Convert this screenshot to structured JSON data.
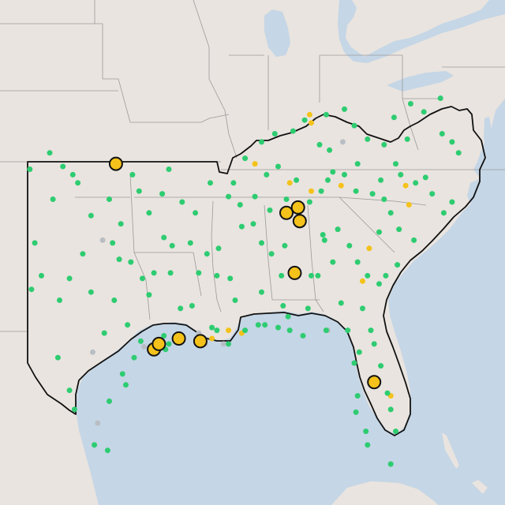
{
  "colors": {
    "land": "#e9e4df",
    "water": "#c5d6e6",
    "state_border": "#9a9a9a",
    "region_outline": "#111111",
    "station_green": "#2ecc71",
    "station_gray": "#b9bec4",
    "station_yellow": "#f4c21a",
    "large_marker_fill": "#f4c21a",
    "large_marker_stroke": "#111111"
  },
  "legend": null,
  "markers": {
    "large": [
      {
        "lon": -97.0,
        "lat": 36.5
      },
      {
        "lon": -94.7,
        "lat": 29.7
      },
      {
        "lon": -94.4,
        "lat": 29.9
      },
      {
        "lon": -93.2,
        "lat": 30.1
      },
      {
        "lon": -91.9,
        "lat": 30.0
      },
      {
        "lon": -86.7,
        "lat": 34.7
      },
      {
        "lon": -86.0,
        "lat": 34.9
      },
      {
        "lon": -85.9,
        "lat": 34.4
      },
      {
        "lon": -86.2,
        "lat": 32.5
      },
      {
        "lon": -81.4,
        "lat": 28.5
      }
    ],
    "small_green": [
      [
        -88.2,
        37.3
      ],
      [
        -87.4,
        37.6
      ],
      [
        -86.3,
        37.7
      ],
      [
        -85.6,
        38.1
      ],
      [
        -84.3,
        38.3
      ],
      [
        -83.2,
        38.5
      ],
      [
        -82.6,
        37.9
      ],
      [
        -84.7,
        37.2
      ],
      [
        -84.1,
        37.0
      ],
      [
        -81.8,
        37.4
      ],
      [
        -80.8,
        37.2
      ],
      [
        -80.2,
        38.2
      ],
      [
        -79.2,
        38.7
      ],
      [
        -78.4,
        38.4
      ],
      [
        -77.4,
        38.9
      ],
      [
        -77.3,
        37.6
      ],
      [
        -76.7,
        37.3
      ],
      [
        -76.3,
        36.9
      ],
      [
        -79.4,
        37.4
      ],
      [
        -80.1,
        36.5
      ],
      [
        -78.3,
        36.0
      ],
      [
        -77.9,
        35.4
      ],
      [
        -76.7,
        35.1
      ],
      [
        -77.2,
        34.7
      ],
      [
        -78.9,
        35.8
      ],
      [
        -79.8,
        36.1
      ],
      [
        -80.8,
        35.2
      ],
      [
        -81.5,
        35.4
      ],
      [
        -82.5,
        35.5
      ],
      [
        -81.0,
        35.9
      ],
      [
        -80.4,
        34.7
      ],
      [
        -81.1,
        34.0
      ],
      [
        -79.9,
        34.1
      ],
      [
        -79.0,
        33.7
      ],
      [
        -80.0,
        32.8
      ],
      [
        -80.7,
        32.4
      ],
      [
        -81.1,
        32.1
      ],
      [
        -81.8,
        32.4
      ],
      [
        -82.4,
        32.9
      ],
      [
        -82.9,
        33.5
      ],
      [
        -83.6,
        34.1
      ],
      [
        -84.4,
        33.7
      ],
      [
        -84.5,
        33.9
      ],
      [
        -83.9,
        32.9
      ],
      [
        -84.8,
        32.4
      ],
      [
        -83.4,
        31.4
      ],
      [
        -82.1,
        31.2
      ],
      [
        -81.6,
        30.4
      ],
      [
        -81.4,
        29.9
      ],
      [
        -81.0,
        29.1
      ],
      [
        -80.6,
        28.1
      ],
      [
        -80.4,
        27.5
      ],
      [
        -80.1,
        26.7
      ],
      [
        -80.4,
        25.5
      ],
      [
        -81.8,
        26.2
      ],
      [
        -81.9,
        26.7
      ],
      [
        -82.5,
        27.4
      ],
      [
        -82.4,
        28.0
      ],
      [
        -82.6,
        29.2
      ],
      [
        -82.3,
        29.6
      ],
      [
        -83.0,
        30.4
      ],
      [
        -84.3,
        30.4
      ],
      [
        -85.7,
        30.2
      ],
      [
        -86.5,
        30.4
      ],
      [
        -87.2,
        30.5
      ],
      [
        -88.0,
        30.6
      ],
      [
        -88.4,
        30.6
      ],
      [
        -89.2,
        30.4
      ],
      [
        -89.8,
        31.5
      ],
      [
        -90.1,
        32.3
      ],
      [
        -90.9,
        32.4
      ],
      [
        -91.5,
        33.2
      ],
      [
        -90.8,
        33.4
      ],
      [
        -89.4,
        34.2
      ],
      [
        -88.7,
        34.3
      ],
      [
        -88.2,
        33.6
      ],
      [
        -87.6,
        33.2
      ],
      [
        -87.0,
        32.4
      ],
      [
        -88.2,
        31.8
      ],
      [
        -86.9,
        31.3
      ],
      [
        -86.6,
        30.9
      ],
      [
        -85.4,
        31.2
      ],
      [
        -85.2,
        32.4
      ],
      [
        -86.8,
        33.5
      ],
      [
        -87.7,
        34.8
      ],
      [
        -86.7,
        35.2
      ],
      [
        -86.1,
        35.9
      ],
      [
        -85.3,
        35.1
      ],
      [
        -84.6,
        35.5
      ],
      [
        -84.2,
        35.9
      ],
      [
        -83.9,
        36.2
      ],
      [
        -83.2,
        36.1
      ],
      [
        -82.4,
        36.5
      ],
      [
        -87.2,
        36.4
      ],
      [
        -87.9,
        36.1
      ],
      [
        -88.6,
        35.3
      ],
      [
        -89.5,
        35.0
      ],
      [
        -89.9,
        35.8
      ],
      [
        -89.2,
        36.7
      ],
      [
        -90.2,
        35.3
      ],
      [
        -91.3,
        35.8
      ],
      [
        -92.2,
        34.7
      ],
      [
        -93.0,
        35.1
      ],
      [
        -93.8,
        36.3
      ],
      [
        -94.2,
        35.4
      ],
      [
        -94.1,
        33.8
      ],
      [
        -93.6,
        33.5
      ],
      [
        -92.5,
        33.6
      ],
      [
        -92.0,
        32.5
      ],
      [
        -93.7,
        32.5
      ],
      [
        -93.1,
        31.2
      ],
      [
        -92.4,
        31.3
      ],
      [
        -90.9,
        30.4
      ],
      [
        -90.2,
        29.9
      ],
      [
        -91.2,
        30.5
      ],
      [
        -102.2,
        36.3
      ],
      [
        -101.0,
        36.9
      ],
      [
        -100.2,
        36.4
      ],
      [
        -99.6,
        36.1
      ],
      [
        -99.3,
        35.8
      ],
      [
        -98.5,
        34.6
      ],
      [
        -97.4,
        35.2
      ],
      [
        -96.0,
        36.1
      ],
      [
        -95.6,
        35.5
      ],
      [
        -95.0,
        34.7
      ],
      [
        -96.7,
        34.3
      ],
      [
        -97.2,
        33.6
      ],
      [
        -96.8,
        33.0
      ],
      [
        -96.1,
        32.9
      ],
      [
        -95.4,
        32.3
      ],
      [
        -94.7,
        32.5
      ],
      [
        -95.0,
        31.7
      ],
      [
        -97.1,
        31.5
      ],
      [
        -98.5,
        31.8
      ],
      [
        -97.7,
        30.3
      ],
      [
        -96.3,
        30.6
      ],
      [
        -95.5,
        30.0
      ],
      [
        -94.1,
        30.2
      ],
      [
        -95.9,
        29.4
      ],
      [
        -96.6,
        28.8
      ],
      [
        -97.4,
        27.8
      ],
      [
        -99.8,
        28.2
      ],
      [
        -100.5,
        29.4
      ],
      [
        -99.5,
        27.5
      ],
      [
        -97.5,
        26.0
      ],
      [
        -98.3,
        26.2
      ],
      [
        -101.9,
        33.6
      ],
      [
        -102.1,
        31.9
      ],
      [
        -101.5,
        32.4
      ],
      [
        -100.4,
        31.5
      ],
      [
        -99.8,
        32.3
      ],
      [
        -100.8,
        35.2
      ],
      [
        -99.0,
        33.2
      ],
      [
        -96.4,
        28.4
      ],
      [
        -94.0,
        29.7
      ],
      [
        -93.8,
        29.9
      ]
    ],
    "small_gray": [
      [
        -83.3,
        37.3
      ],
      [
        -92.0,
        30.3
      ],
      [
        -90.5,
        29.9
      ],
      [
        -91.6,
        29.9
      ],
      [
        -84.2,
        30.4
      ],
      [
        -97.8,
        33.7
      ],
      [
        -98.4,
        29.6
      ],
      [
        -95.3,
        29.8
      ],
      [
        -98.1,
        27.0
      ]
    ],
    "small_yellow": [
      [
        -85.2,
        38.0
      ],
      [
        -85.3,
        38.3
      ],
      [
        -88.6,
        36.5
      ],
      [
        -85.2,
        35.5
      ],
      [
        -83.4,
        35.7
      ],
      [
        -79.5,
        35.7
      ],
      [
        -79.3,
        35.0
      ],
      [
        -81.7,
        33.4
      ],
      [
        -82.1,
        32.2
      ],
      [
        -80.4,
        28.0
      ],
      [
        -90.2,
        30.4
      ],
      [
        -89.4,
        30.3
      ],
      [
        -86.5,
        35.8
      ],
      [
        -91.2,
        30.1
      ]
    ]
  }
}
